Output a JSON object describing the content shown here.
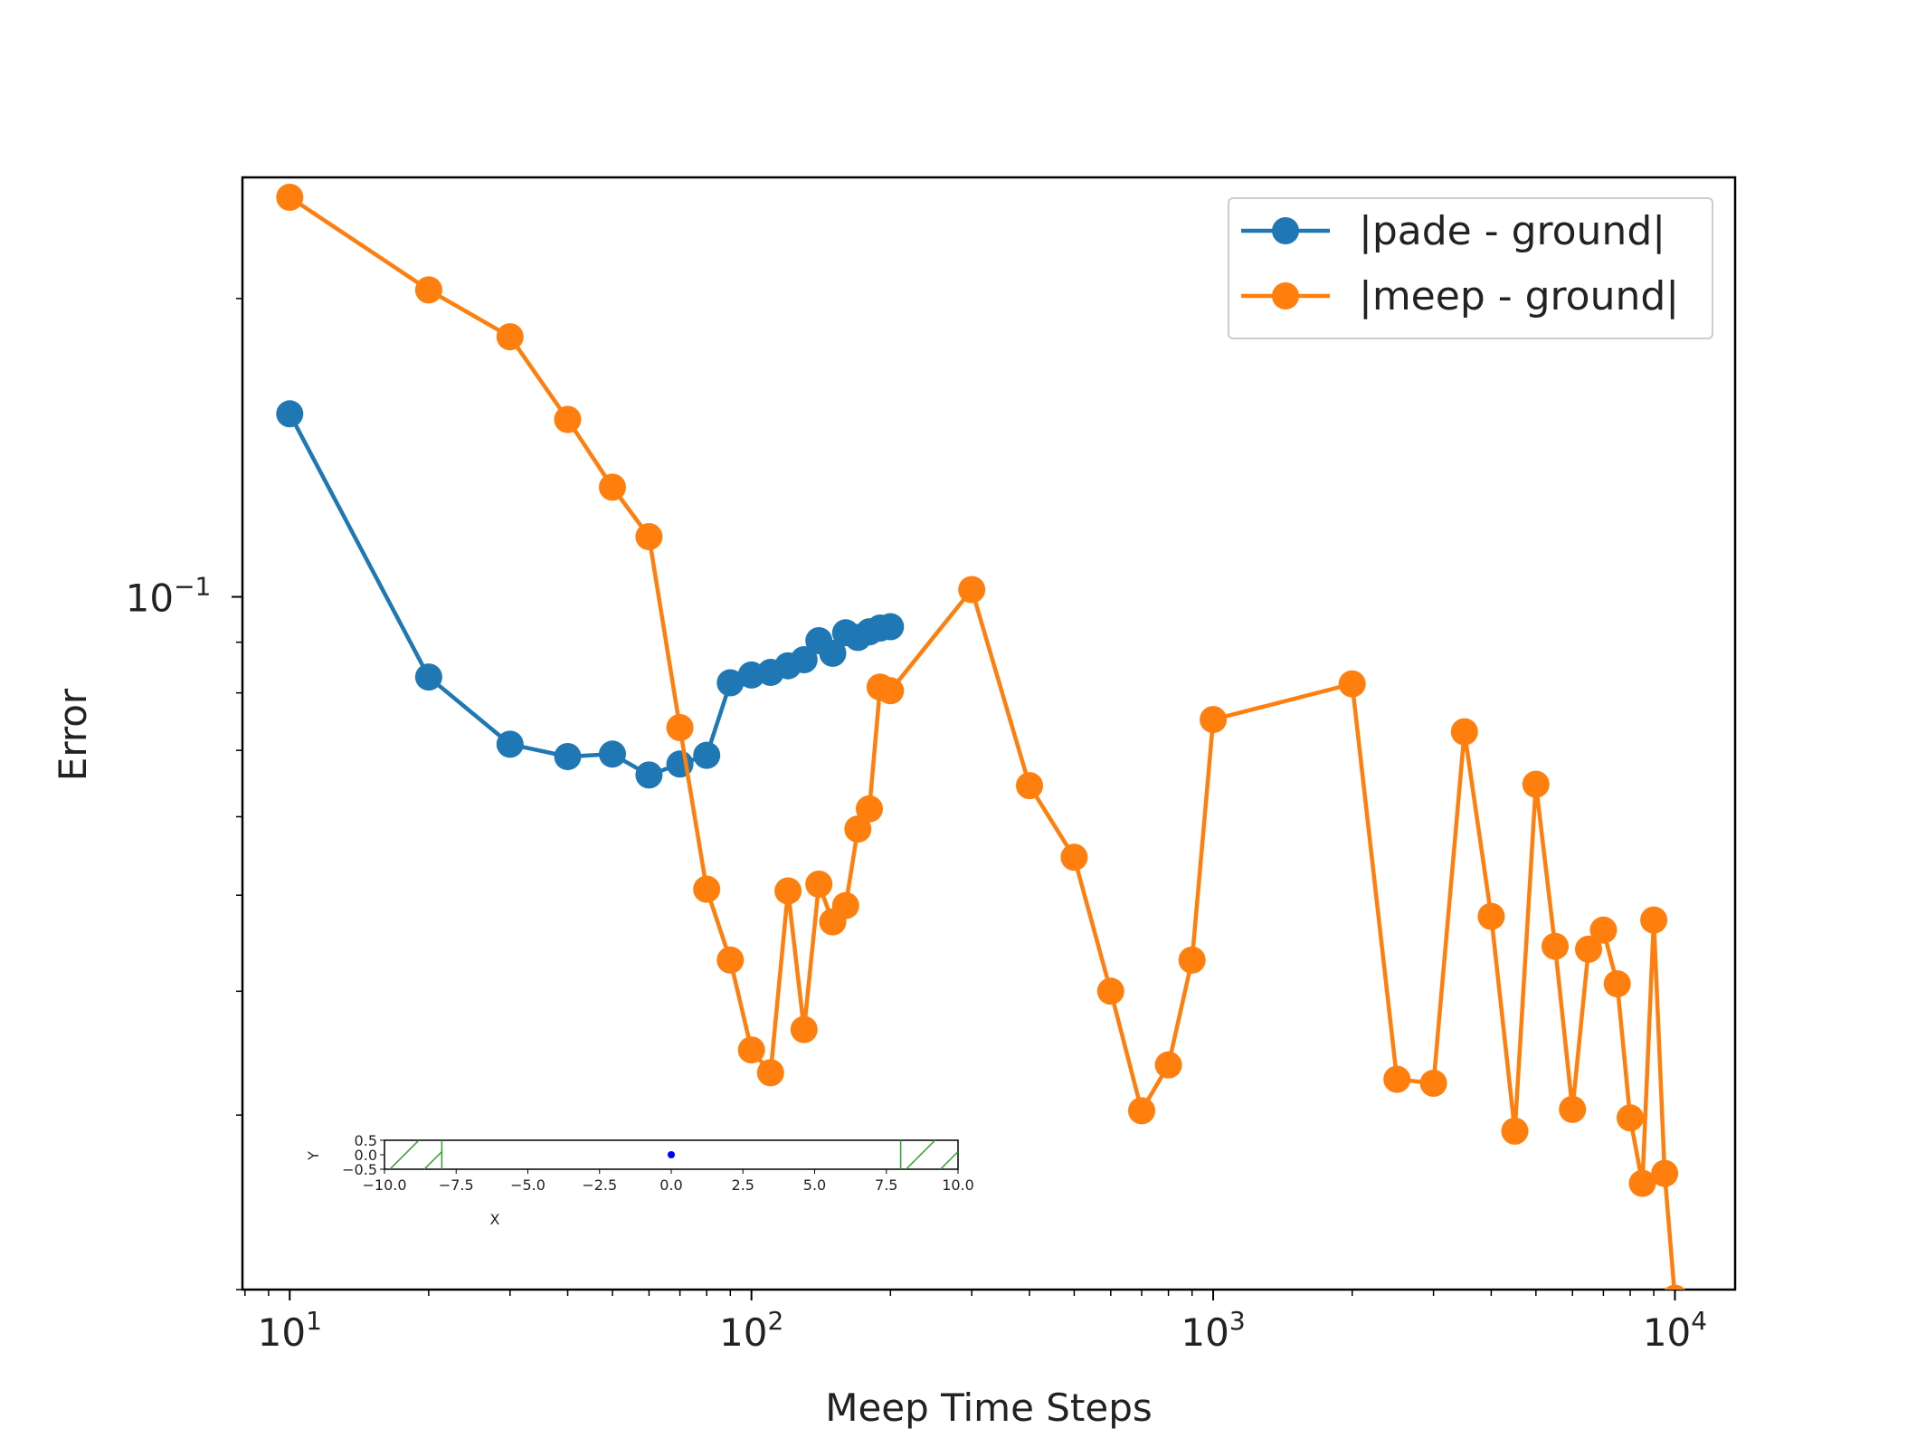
{
  "chart_data": [
    {
      "type": "line",
      "title": "",
      "xlabel": "Meep Time Steps",
      "ylabel": "Error",
      "xscale": "log",
      "yscale": "log",
      "xlim": [
        7.9,
        13500
      ],
      "ylim": [
        0.02,
        0.265
      ],
      "xticks": [
        {
          "value": 10,
          "base": "10",
          "exp": "1"
        },
        {
          "value": 100,
          "base": "10",
          "exp": "2"
        },
        {
          "value": 1000,
          "base": "10",
          "exp": "3"
        },
        {
          "value": 10000,
          "base": "10",
          "exp": "4"
        }
      ],
      "yticks": [
        {
          "value": 0.1,
          "base": "10",
          "exp": "−1"
        }
      ],
      "grid": false,
      "legend_position": "top-right",
      "series": [
        {
          "name": "|pade - ground|",
          "color": "#1f77b4",
          "marker": "circle",
          "x": [
            10,
            20,
            30,
            40,
            50,
            60,
            70,
            80,
            90,
            100,
            110,
            120,
            130,
            140,
            150,
            160,
            170,
            180,
            190,
            200
          ],
          "y": [
            0.153,
            0.083,
            0.071,
            0.069,
            0.0694,
            0.0661,
            0.0678,
            0.0692,
            0.0819,
            0.0834,
            0.0839,
            0.0852,
            0.0864,
            0.0903,
            0.0877,
            0.092,
            0.091,
            0.0922,
            0.093,
            0.0933
          ]
        },
        {
          "name": "|meep - ground|",
          "color": "#ff7f0e",
          "marker": "circle",
          "x": [
            10,
            20,
            30,
            40,
            50,
            60,
            70,
            80,
            90,
            100,
            110,
            120,
            130,
            140,
            150,
            160,
            170,
            180,
            190,
            200,
            300,
            400,
            500,
            600,
            700,
            800,
            900,
            1000,
            2000,
            2500,
            3000,
            3500,
            4000,
            4500,
            5000,
            5500,
            6000,
            6500,
            7000,
            7500,
            8000,
            8500,
            9000,
            9500,
            10000
          ],
          "y": [
            0.253,
            0.204,
            0.183,
            0.151,
            0.129,
            0.115,
            0.0738,
            0.0507,
            0.043,
            0.0349,
            0.0331,
            0.0505,
            0.0366,
            0.0513,
            0.047,
            0.0488,
            0.0583,
            0.0611,
            0.0811,
            0.0804,
            0.1017,
            0.0645,
            0.0546,
            0.04,
            0.0303,
            0.0337,
            0.043,
            0.0752,
            0.0817,
            0.0326,
            0.0323,
            0.0731,
            0.0476,
            0.0289,
            0.0647,
            0.0444,
            0.0304,
            0.0441,
            0.0461,
            0.0407,
            0.0298,
            0.0256,
            0.0472,
            0.0262,
            0.0196
          ]
        }
      ]
    },
    {
      "type": "scatter",
      "title": "",
      "xlabel": "X",
      "ylabel": "Y",
      "xlim": [
        -10.0,
        10.0
      ],
      "ylim": [
        -0.5,
        0.5
      ],
      "xtick_labels": [
        "−10.0",
        "−7.5",
        "−5.0",
        "−2.5",
        "0.0",
        "2.5",
        "5.0",
        "7.5",
        "10.0"
      ],
      "xtick_values": [
        -10.0,
        -7.5,
        -5.0,
        -2.5,
        0.0,
        2.5,
        5.0,
        7.5,
        10.0
      ],
      "ytick_labels": [
        "0.5",
        "0.0",
        "−0.5"
      ],
      "ytick_values": [
        0.5,
        0.0,
        -0.5
      ],
      "grid": false,
      "point": {
        "x": 0.0,
        "y": 0.0,
        "color": "#0000ff"
      },
      "regions": [
        {
          "x": [
            -10.0,
            -8.0
          ],
          "color": "#2ca02c",
          "hatch": "/"
        },
        {
          "x": [
            8.0,
            10.0
          ],
          "color": "#2ca02c",
          "hatch": "/"
        }
      ]
    }
  ]
}
